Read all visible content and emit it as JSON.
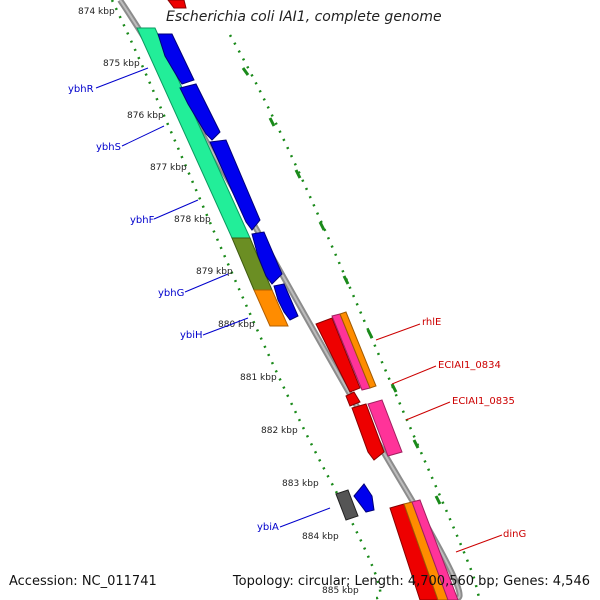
{
  "title": "Escherichia coli IAI1, complete genome",
  "footer": {
    "accession": "Accession: NC_011741",
    "topology": "Topology: circular; Length: 4,700,560 bp; Genes: 4,546"
  },
  "ticks": [
    "874 kbp",
    "875 kbp",
    "876 kbp",
    "877 kbp",
    "878 kbp",
    "879 kbp",
    "880 kbp",
    "881 kbp",
    "882 kbp",
    "883 kbp",
    "884 kbp",
    "885 kbp"
  ],
  "genes_left": [
    "ybhR",
    "ybhS",
    "ybhF",
    "ybhG",
    "ybiH",
    "ybiA"
  ],
  "genes_right": [
    "rhlE",
    "ECIAI1_0834",
    "ECIAI1_0835",
    "dinG"
  ],
  "colors": {
    "backbone": "#8c8c8c",
    "forward_cds": "#0000ee",
    "reverse_cds": "#ee0000",
    "abc_transporter": "#22ee99",
    "olive": "#6b8e23",
    "orange": "#ff8c00",
    "pink": "#ff3399",
    "gray": "#555555",
    "dotted": "#1a8a1a"
  }
}
